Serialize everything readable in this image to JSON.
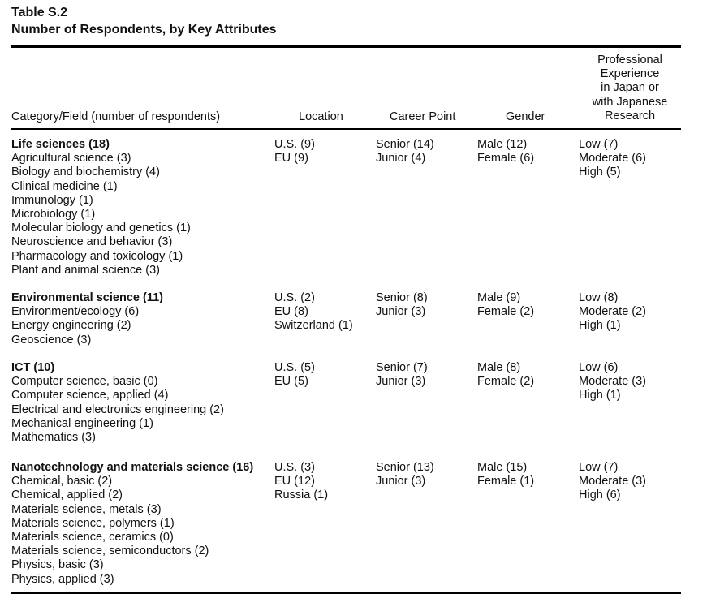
{
  "table_label": "Table S.2",
  "table_title": "Number of Respondents, by Key Attributes",
  "headers": {
    "category": "Category/Field (number of respondents)",
    "location": "Location",
    "career": "Career Point",
    "gender": "Gender",
    "experience": [
      "Professional",
      "Experience",
      "in Japan or",
      "with Japanese",
      "Research"
    ]
  },
  "groups": [
    {
      "category": "Life sciences (18)",
      "fields": [
        "Agricultural science (3)",
        "Biology and biochemistry (4)",
        "Clinical medicine (1)",
        "Immunology (1)",
        "Microbiology (1)",
        "Molecular biology and genetics (1)",
        "Neuroscience and behavior (3)",
        "Pharmacology and toxicology (1)",
        "Plant and animal science (3)"
      ],
      "location": [
        "U.S. (9)",
        "EU (9)"
      ],
      "career": [
        "Senior (14)",
        "Junior (4)"
      ],
      "gender": [
        "Male (12)",
        "Female (6)"
      ],
      "experience": [
        "Low (7)",
        "Moderate (6)",
        "High (5)"
      ]
    },
    {
      "category": "Environmental science (11)",
      "fields": [
        "Environment/ecology (6)",
        "Energy engineering (2)",
        "Geoscience (3)"
      ],
      "location": [
        "U.S. (2)",
        "EU (8)",
        "Switzerland (1)"
      ],
      "career": [
        "Senior (8)",
        "Junior (3)"
      ],
      "gender": [
        "Male (9)",
        "Female (2)"
      ],
      "experience": [
        "Low (8)",
        "Moderate (2)",
        "High (1)"
      ]
    },
    {
      "category": "ICT (10)",
      "fields": [
        "Computer science, basic (0)",
        "Computer science, applied (4)",
        "Electrical and electronics engineering (2)",
        "Mechanical engineering (1)",
        "Mathematics (3)"
      ],
      "location": [
        "U.S. (5)",
        "EU (5)"
      ],
      "career": [
        "Senior (7)",
        "Junior (3)"
      ],
      "gender": [
        "Male (8)",
        "Female (2)"
      ],
      "experience": [
        "Low (6)",
        "Moderate (3)",
        "High (1)"
      ]
    },
    {
      "category": "Nanotechnology and materials science (16)",
      "fields": [
        "Chemical, basic (2)",
        "Chemical, applied (2)",
        "Materials science, metals (3)",
        "Materials science, polymers (1)",
        "Materials science, ceramics (0)",
        "Materials science, semiconductors (2)",
        "Physics, basic (3)",
        "Physics, applied (3)"
      ],
      "location": [
        "U.S. (3)",
        "EU (12)",
        "Russia (1)"
      ],
      "career": [
        "Senior (13)",
        "Junior (3)"
      ],
      "gender": [
        "Male (15)",
        "Female (1)"
      ],
      "experience": [
        "Low (7)",
        "Moderate (3)",
        "High (6)"
      ]
    }
  ]
}
